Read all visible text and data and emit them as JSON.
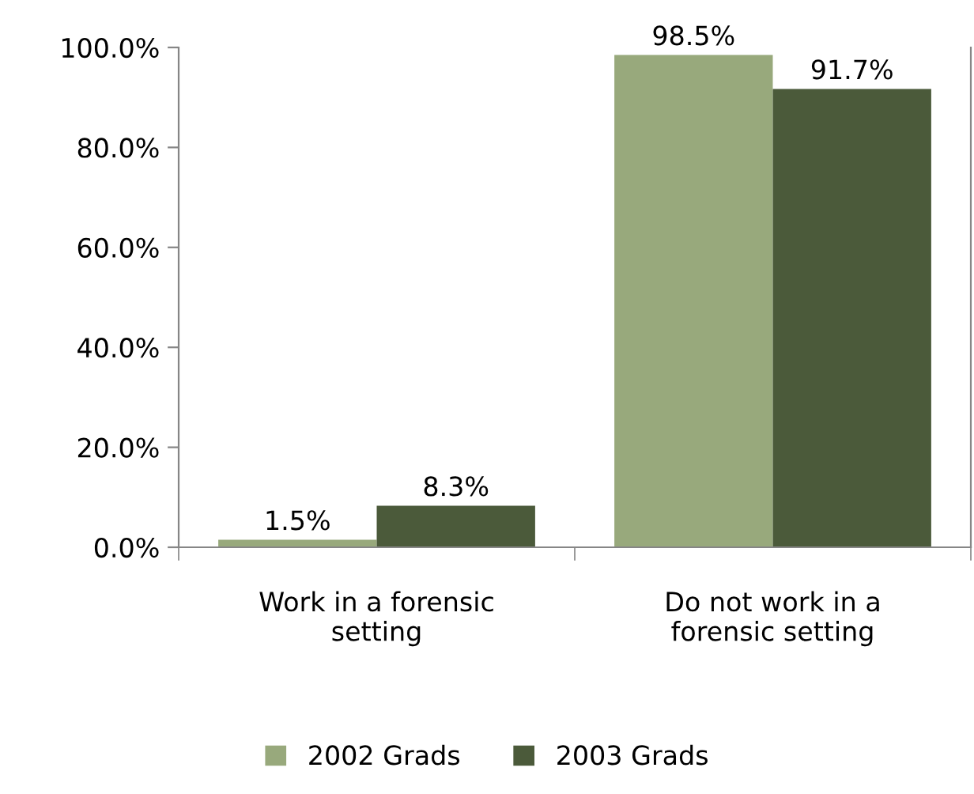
{
  "chart_data": {
    "type": "bar",
    "categories": [
      "Work in a forensic\nsetting",
      "Do not work in a\nforensic setting"
    ],
    "series": [
      {
        "name": "2002 Grads",
        "color": "#98a97c",
        "values": [
          1.5,
          98.5
        ],
        "value_labels": [
          "1.5%",
          "98.5%"
        ]
      },
      {
        "name": "2003 Grads",
        "color": "#4b5a3a",
        "values": [
          8.3,
          91.7
        ],
        "value_labels": [
          "8.3%",
          "91.7%"
        ]
      }
    ],
    "ylim": [
      0,
      100
    ],
    "yticks": [
      {
        "value": 0,
        "label": "0.0%"
      },
      {
        "value": 20,
        "label": "20.0%"
      },
      {
        "value": 40,
        "label": "40.0%"
      },
      {
        "value": 60,
        "label": "60.0%"
      },
      {
        "value": 80,
        "label": "80.0%"
      },
      {
        "value": 100,
        "label": "100.0%"
      }
    ],
    "grid": false,
    "legend": "bottom"
  }
}
